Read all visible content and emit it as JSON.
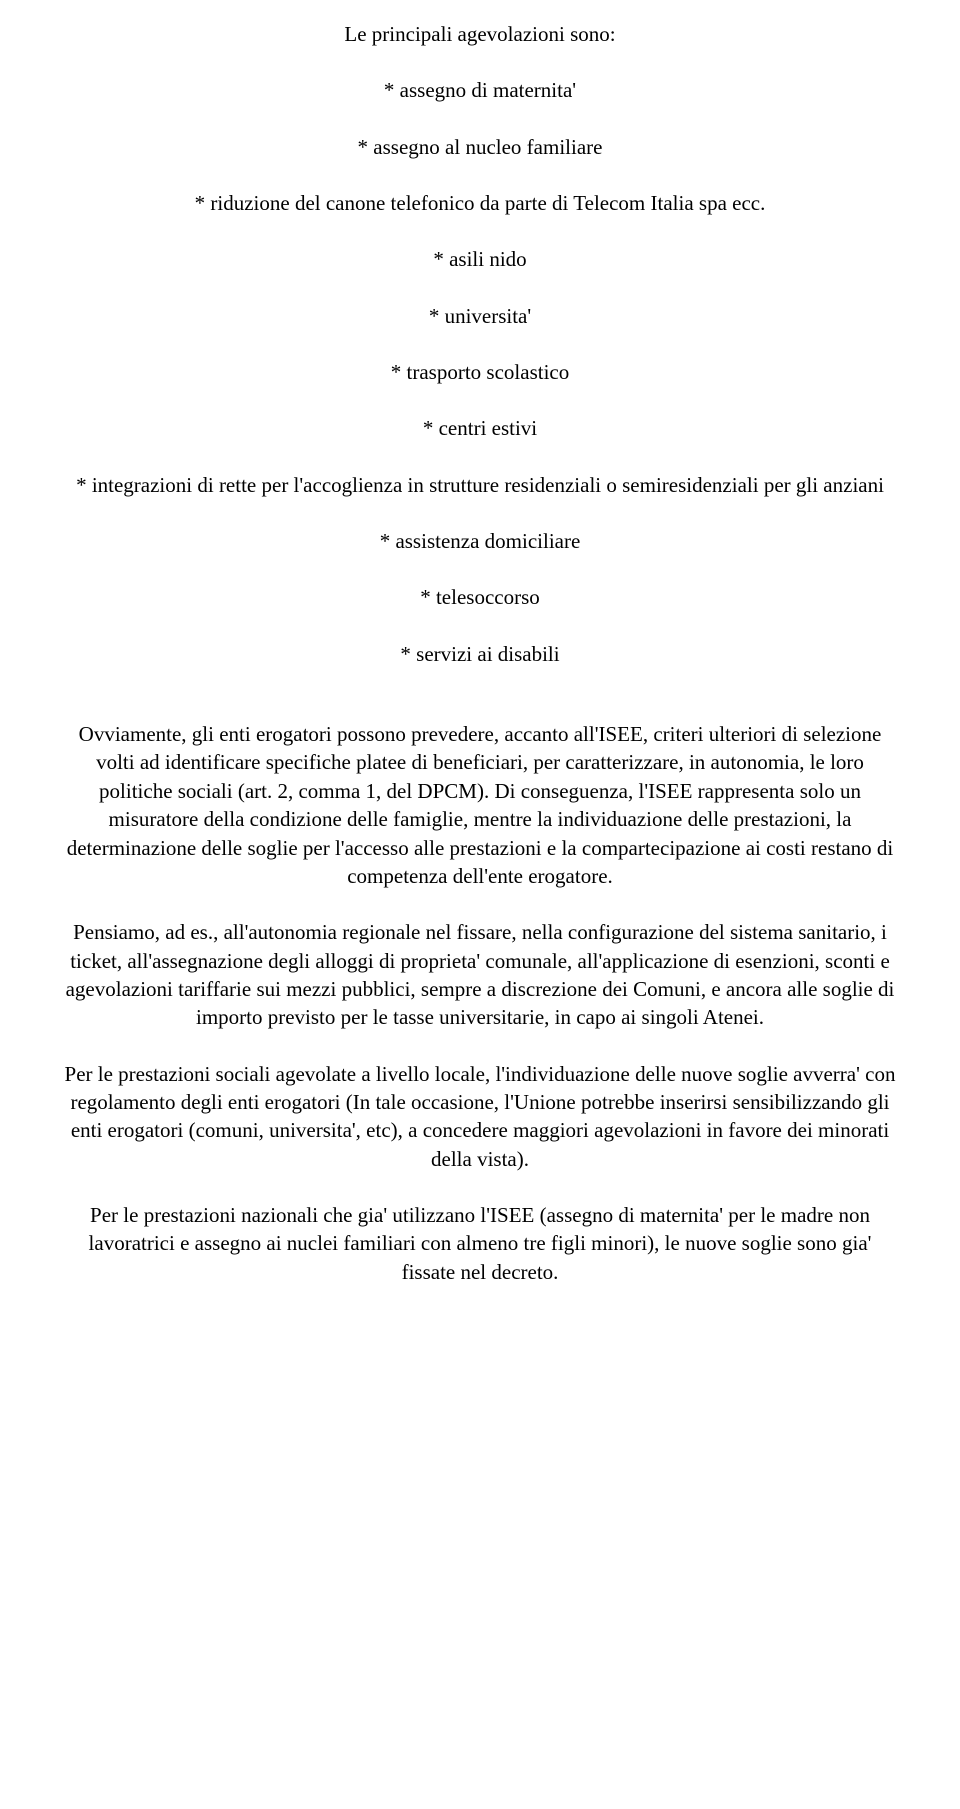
{
  "intro": "Le principali agevolazioni sono:",
  "bullets_a": [
    "* assegno di maternita'",
    "* assegno al nucleo familiare",
    "* riduzione del canone telefonico da parte di Telecom Italia spa ecc.",
    "* asili nido",
    "* universita'",
    "* trasporto scolastico",
    "* centri estivi",
    "* integrazioni di rette per l'accoglienza in strutture residenziali o semiresidenziali per gli anziani",
    "* assistenza domiciliare",
    "* telesoccorso",
    "* servizi ai disabili"
  ],
  "paragraphs": [
    "Ovviamente, gli enti erogatori possono prevedere, accanto all'ISEE, criteri ulteriori di selezione volti ad identificare specifiche platee di beneficiari, per caratterizzare, in autonomia, le loro politiche sociali (art. 2, comma 1, del DPCM). Di conseguenza, l'ISEE rappresenta solo un misuratore della condizione delle famiglie, mentre la individuazione delle prestazioni, la determinazione delle soglie per l'accesso alle prestazioni e la compartecipazione ai costi restano di competenza dell'ente erogatore.",
    "Pensiamo, ad es., all'autonomia regionale nel fissare, nella configurazione del sistema sanitario, i ticket, all'assegnazione degli alloggi di proprieta' comunale, all'applicazione di esenzioni, sconti e agevolazioni tariffarie sui mezzi pubblici, sempre a discrezione dei Comuni, e ancora alle soglie di importo previsto per le tasse universitarie, in capo ai singoli Atenei.",
    "Per le prestazioni sociali agevolate a livello locale, l'individuazione delle nuove soglie avverra' con regolamento degli enti erogatori (In tale occasione, l'Unione potrebbe inserirsi sensibilizzando gli enti erogatori (comuni, universita', etc), a concedere maggiori agevolazioni in favore dei minorati della vista).",
    "Per le prestazioni nazionali che gia' utilizzano l'ISEE (assegno di maternita' per le madre non lavoratrici e assegno ai nuclei familiari con almeno tre figli minori), le nuove soglie sono gia' fissate nel decreto."
  ]
}
